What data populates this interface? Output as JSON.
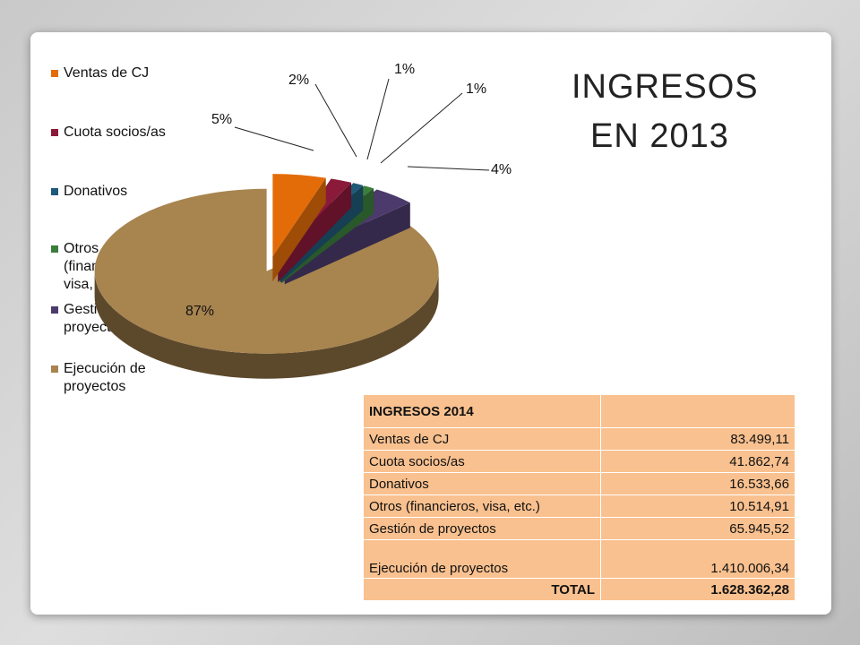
{
  "title": {
    "line1": "INGRESOS",
    "line2": "EN 2013"
  },
  "chart_data": {
    "type": "pie",
    "style": "3d-exploded",
    "categories": [
      "Ventas de CJ",
      "Cuota socios/as",
      "Donativos",
      "Otros (financieros, visa, etc.)",
      "Gestión de proyectos",
      "Ejecución de proyectos"
    ],
    "legend_labels": [
      "Ventas de CJ",
      "Cuota socios/as",
      "Donativos",
      "Otros\n(financieros,\nvisa, etc.)",
      "Gestión de\nproyectos",
      "Ejecución de\nproyectos"
    ],
    "values": [
      5,
      2,
      1,
      1,
      4,
      87
    ],
    "data_labels": [
      "5%",
      "2%",
      "1%",
      "1%",
      "4%",
      "87%"
    ],
    "colors": [
      "#e36c09",
      "#8b1a3a",
      "#1f5a78",
      "#3b7d3c",
      "#4b3a6b",
      "#a8844f"
    ],
    "legend_position": "left"
  },
  "table": {
    "header": "INGRESOS 2014",
    "rows": [
      {
        "label": "Ventas de CJ",
        "value": "83.499,11"
      },
      {
        "label": "Cuota socios/as",
        "value": "41.862,74"
      },
      {
        "label": "Donativos",
        "value": "16.533,66"
      },
      {
        "label": "Otros (financieros, visa, etc.)",
        "value": "10.514,91"
      },
      {
        "label": "Gestión de proyectos",
        "value": "65.945,52"
      },
      {
        "label": "Ejecución de proyectos",
        "value": "1.410.006,34"
      }
    ],
    "total_label": "TOTAL",
    "total_value": "1.628.362,28"
  }
}
